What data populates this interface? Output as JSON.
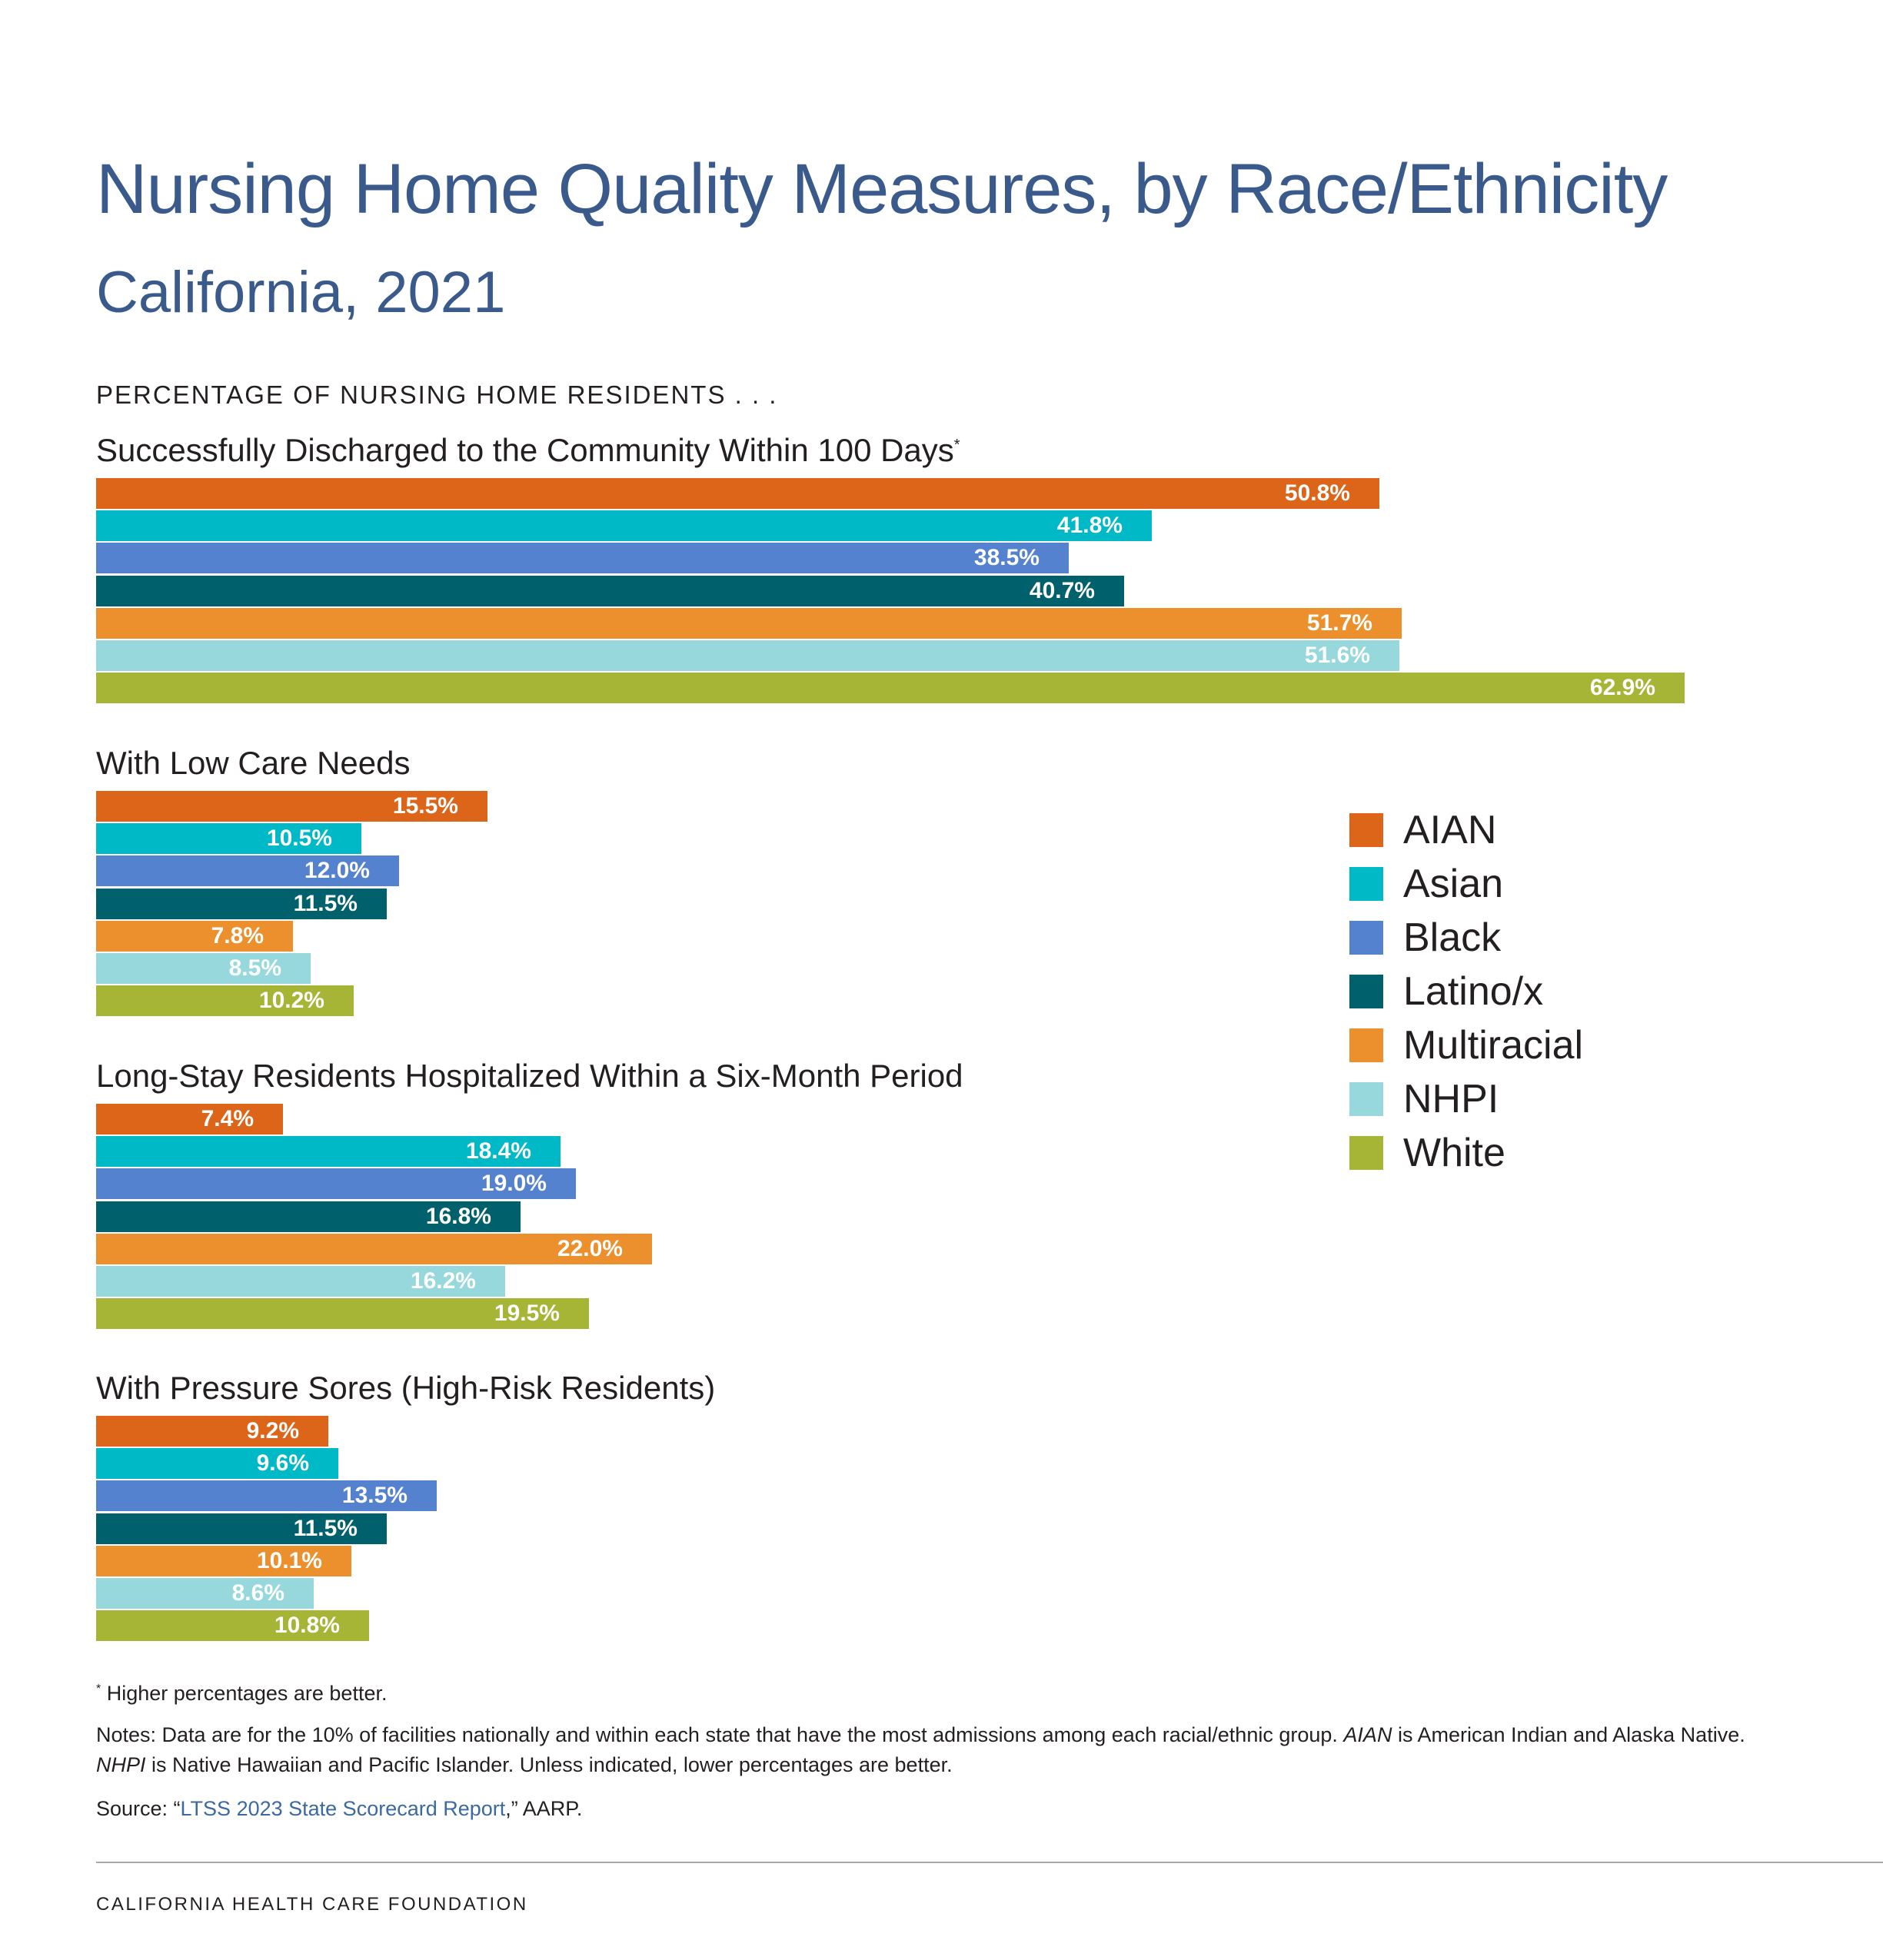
{
  "header": {
    "title": "Nursing Home Quality Measures, by Race/Ethnicity",
    "subtitle": "California, 2021",
    "eyebrow": "PERCENTAGE OF NURSING HOME RESIDENTS . . ."
  },
  "colors": {
    "title": "#3b5a8c",
    "AIAN": "#dc6519",
    "Asian": "#00b9c6",
    "Black": "#5582cf",
    "Latino/x": "#00606b",
    "Multiracial": "#ec902e",
    "NHPI": "#96d8dc",
    "White": "#a6b535"
  },
  "chart_data": {
    "type": "bar",
    "orientation": "horizontal",
    "unit": "%",
    "categories": [
      "AIAN",
      "Asian",
      "Black",
      "Latino/x",
      "Multiracial",
      "NHPI",
      "White"
    ],
    "xlim": [
      0,
      100
    ],
    "panels": [
      {
        "title": "Successfully Discharged to the Community Within 100 Days",
        "marker": "*",
        "values": [
          50.8,
          41.8,
          38.5,
          40.7,
          51.7,
          51.6,
          62.9
        ],
        "labels": [
          "50.8%",
          "41.8%",
          "38.5%",
          "40.7%",
          "51.7%",
          "51.6%",
          "62.9%"
        ]
      },
      {
        "title": "With Low Care Needs",
        "marker": "",
        "values": [
          15.5,
          10.5,
          12.0,
          11.5,
          7.8,
          8.5,
          10.2
        ],
        "labels": [
          "15.5%",
          "10.5%",
          "12.0%",
          "11.5%",
          "7.8%",
          "8.5%",
          "10.2%"
        ]
      },
      {
        "title": "Long-Stay Residents Hospitalized Within a Six-Month Period",
        "marker": "",
        "values": [
          7.4,
          18.4,
          19.0,
          16.8,
          22.0,
          16.2,
          19.5
        ],
        "labels": [
          "7.4%",
          "18.4%",
          "19.0%",
          "16.8%",
          "22.0%",
          "16.2%",
          "19.5%"
        ]
      },
      {
        "title": "With Pressure Sores (High-Risk Residents)",
        "marker": "",
        "values": [
          9.2,
          9.6,
          13.5,
          11.5,
          10.1,
          8.6,
          10.8
        ],
        "labels": [
          "9.2%",
          "9.6%",
          "13.5%",
          "11.5%",
          "10.1%",
          "8.6%",
          "10.8%"
        ]
      }
    ],
    "legend": {
      "placement": "right",
      "entries": [
        "AIAN",
        "Asian",
        "Black",
        "Latino/x",
        "Multiracial",
        "NHPI",
        "White"
      ]
    },
    "grid": false
  },
  "footnotes": {
    "asterisk": "*",
    "higher_better": "Higher percentages are better.",
    "notes_prefix": "Notes: Data are for the 10% of facilities nationally and within each state that have the most admissions among each racial/ethnic group.",
    "aian_abbr": "AIAN",
    "aian_def": "is American Indian and Alaska Native.",
    "nhpi_abbr": "NHPI",
    "nhpi_def": "is Native Hawaiian and Pacific Islander. Unless indicated, lower percentages are better.",
    "source_prefix": "Source: “",
    "source_link": "LTSS 2023 State Scorecard Report",
    "source_suffix": ",” AARP."
  },
  "footer": {
    "org": "CALIFORNIA HEALTH CARE FOUNDATION"
  }
}
